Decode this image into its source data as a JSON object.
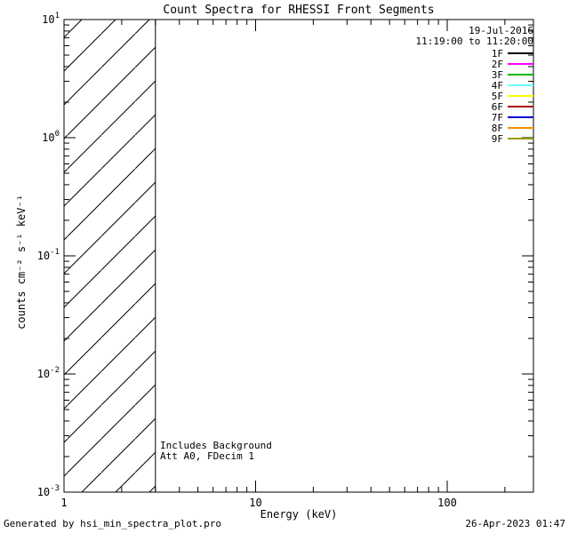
{
  "title": "Count Spectra for RHESSI Front Segments",
  "chart_data": {
    "type": "line",
    "title": "Count Spectra for RHESSI Front Segments",
    "xlabel": "Energy (keV)",
    "ylabel": "counts cm⁻² s⁻¹ keV⁻¹",
    "x_scale": "log",
    "y_scale": "log",
    "xlim": [
      1,
      282
    ],
    "ylim": [
      0.001,
      10
    ],
    "x_major_ticks": [
      1,
      10,
      100
    ],
    "y_major_ticks": [
      0.001,
      0.01,
      0.1,
      1,
      10
    ],
    "grid": false,
    "series": [],
    "hatch_region": {
      "x_min": 1,
      "x_max": 3,
      "y_min": 0.001,
      "y_max": 10,
      "style": "diagonal-lines"
    },
    "annotations": {
      "line1": "Includes Background",
      "line2": "Att A0, FDecim 1"
    },
    "legend": {
      "position": "top-right",
      "date": "19-Jul-2016",
      "time_range": "11:19:00 to 11:20:00",
      "entries": [
        {
          "label": "1F",
          "color": "#000000"
        },
        {
          "label": "2F",
          "color": "#ff00ff"
        },
        {
          "label": "3F",
          "color": "#00b400"
        },
        {
          "label": "4F",
          "color": "#66ffff"
        },
        {
          "label": "5F",
          "color": "#ffff00"
        },
        {
          "label": "6F",
          "color": "#aa0000"
        },
        {
          "label": "7F",
          "color": "#0000cc"
        },
        {
          "label": "8F",
          "color": "#ff8c00"
        },
        {
          "label": "9F",
          "color": "#999900"
        }
      ]
    }
  },
  "footer": {
    "left": "Generated by hsi_min_spectra_plot.pro",
    "right": "26-Apr-2023 01:47"
  }
}
